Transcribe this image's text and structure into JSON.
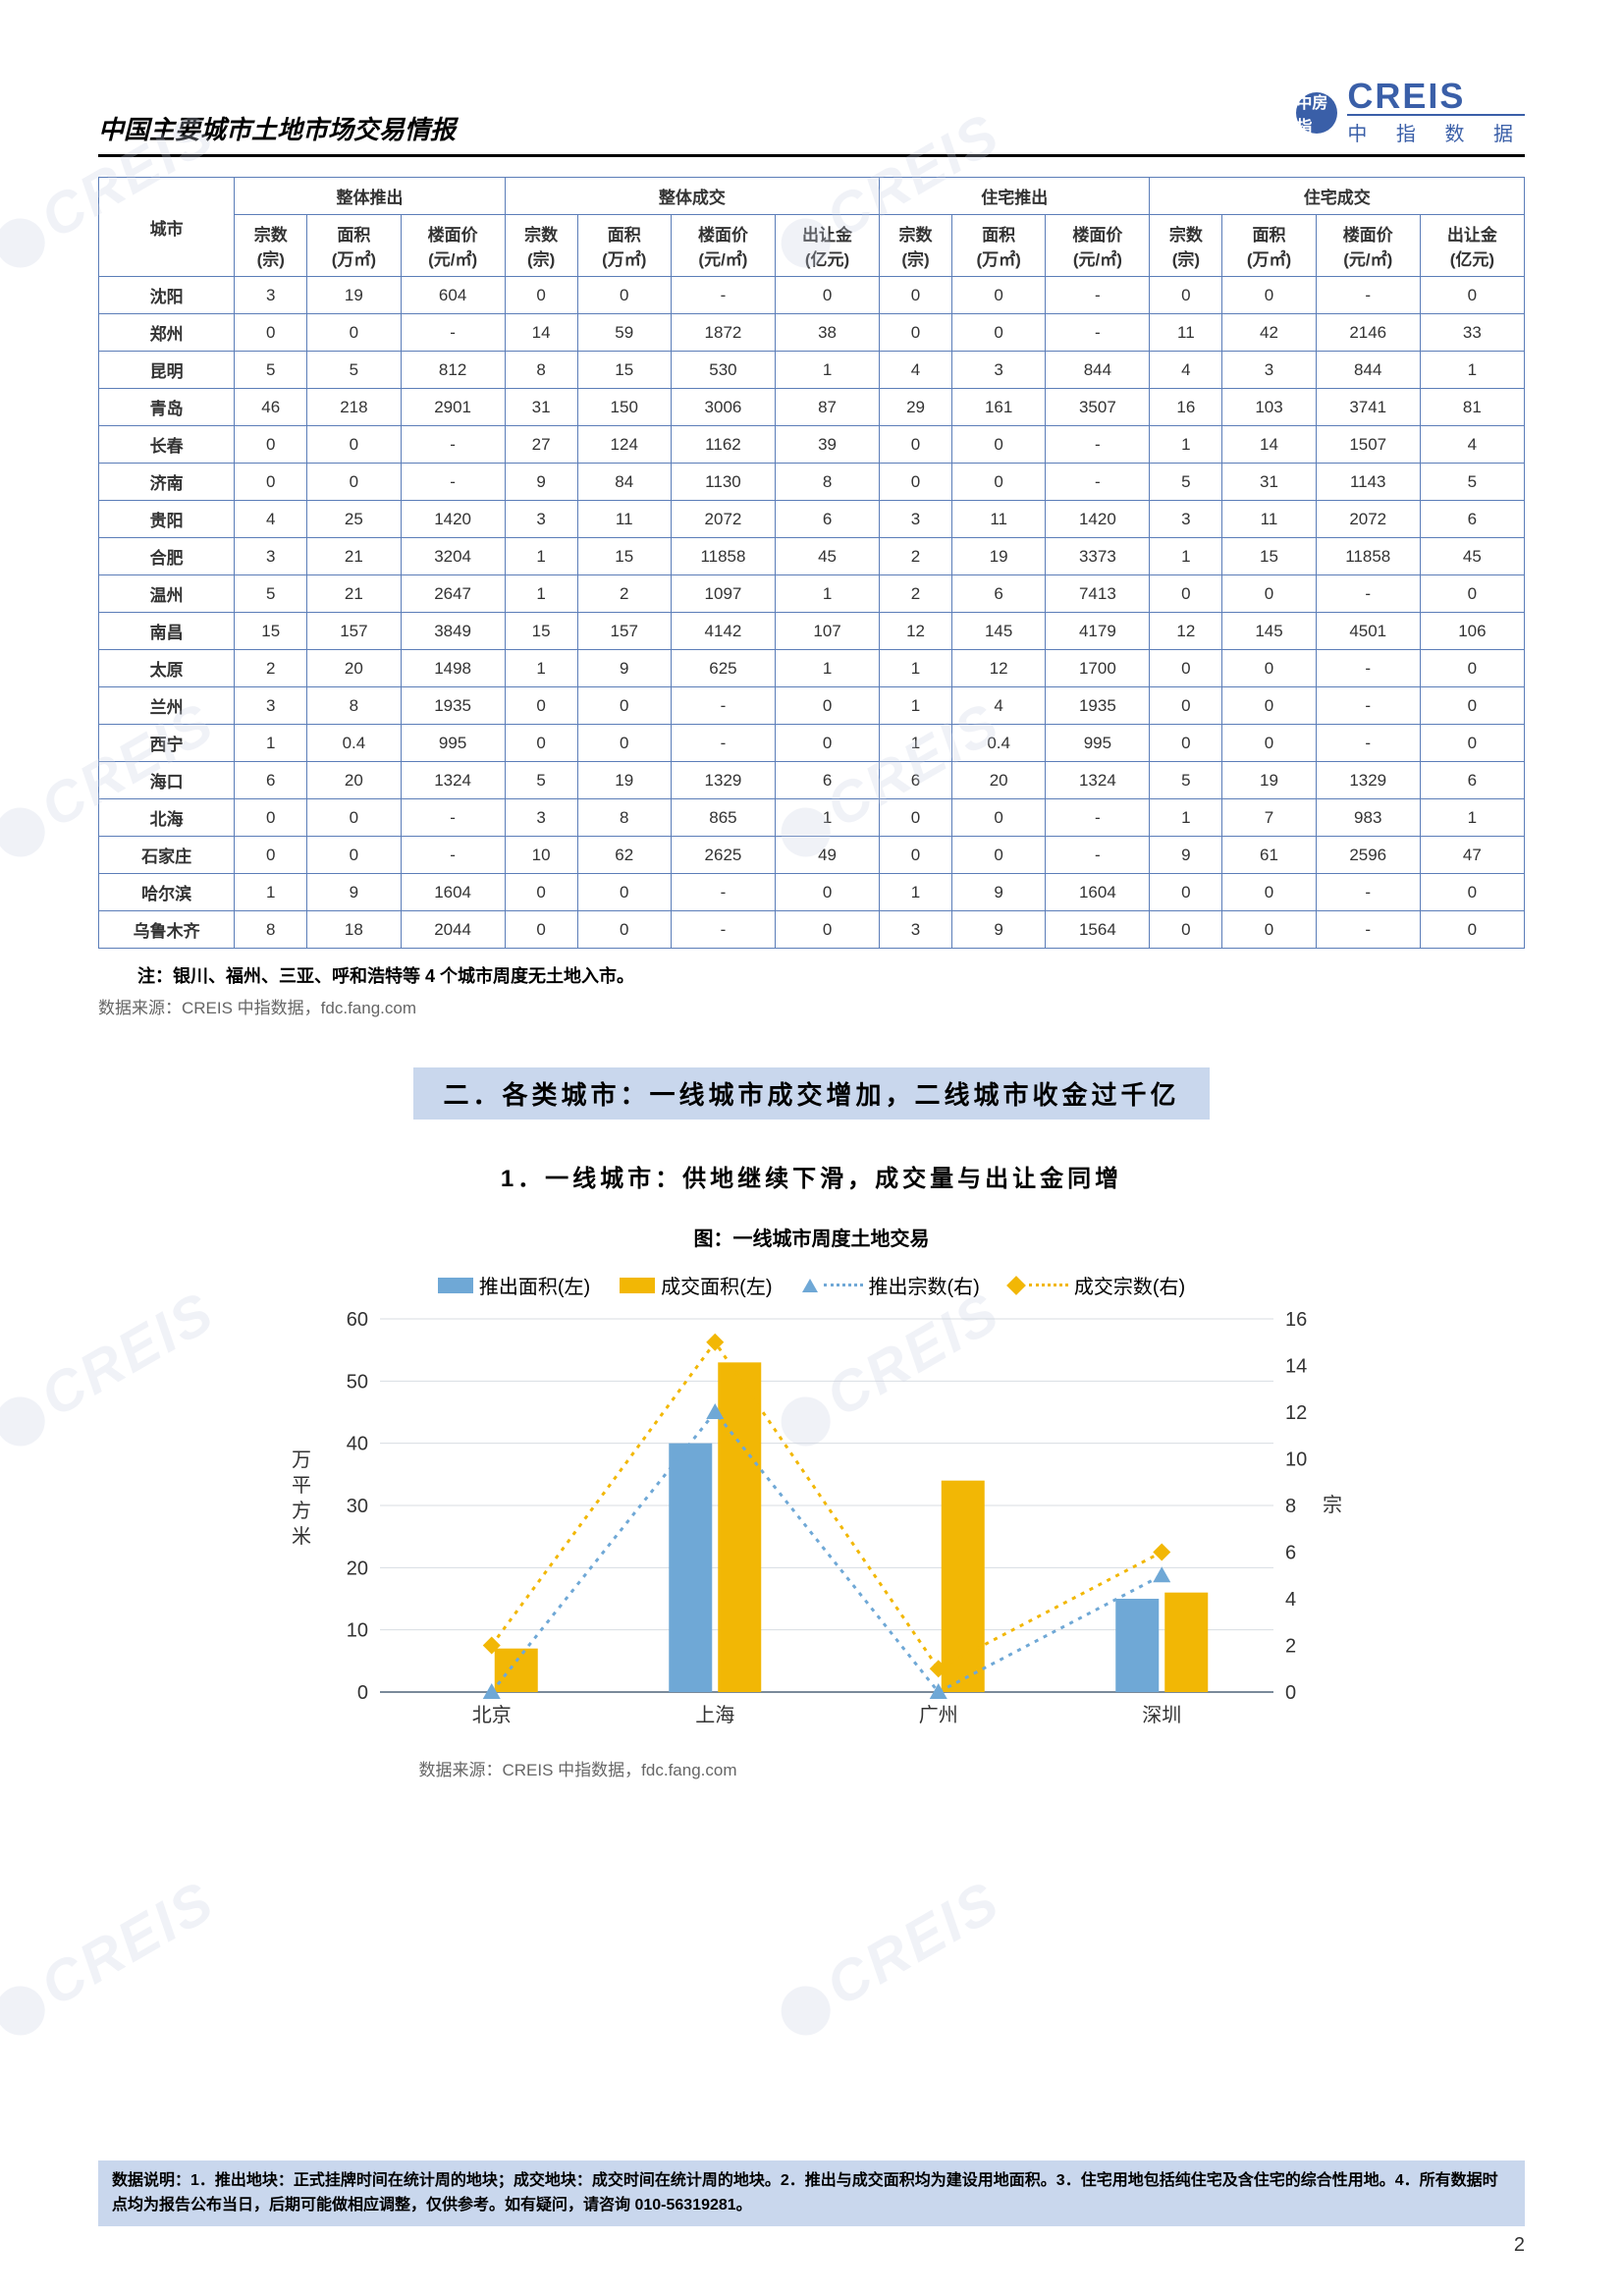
{
  "header": {
    "title": "中国主要城市土地市场交易情报",
    "logo_en": "CREIS",
    "logo_cn": "中 指 数 据",
    "logo_badge": "中房指"
  },
  "table": {
    "group_headers": [
      "整体推出",
      "整体成交",
      "住宅推出",
      "住宅成交"
    ],
    "city_header": "城市",
    "sub_headers_g1": [
      "宗数\n(宗)",
      "面积\n(万㎡)",
      "楼面价\n(元/㎡)"
    ],
    "sub_headers_g2": [
      "宗数\n(宗)",
      "面积\n(万㎡)",
      "楼面价\n(元/㎡)",
      "出让金\n(亿元)"
    ],
    "sub_headers_g3": [
      "宗数\n(宗)",
      "面积\n(万㎡)",
      "楼面价\n(元/㎡)"
    ],
    "sub_headers_g4": [
      "宗数\n(宗)",
      "面积\n(万㎡)",
      "楼面价\n(元/㎡)",
      "出让金\n(亿元)"
    ],
    "rows": [
      {
        "city": "沈阳",
        "v": [
          "3",
          "19",
          "604",
          "0",
          "0",
          "-",
          "0",
          "0",
          "0",
          "-",
          "0",
          "0",
          "-",
          "0"
        ]
      },
      {
        "city": "郑州",
        "v": [
          "0",
          "0",
          "-",
          "14",
          "59",
          "1872",
          "38",
          "0",
          "0",
          "-",
          "11",
          "42",
          "2146",
          "33"
        ]
      },
      {
        "city": "昆明",
        "v": [
          "5",
          "5",
          "812",
          "8",
          "15",
          "530",
          "1",
          "4",
          "3",
          "844",
          "4",
          "3",
          "844",
          "1"
        ]
      },
      {
        "city": "青岛",
        "v": [
          "46",
          "218",
          "2901",
          "31",
          "150",
          "3006",
          "87",
          "29",
          "161",
          "3507",
          "16",
          "103",
          "3741",
          "81"
        ]
      },
      {
        "city": "长春",
        "v": [
          "0",
          "0",
          "-",
          "27",
          "124",
          "1162",
          "39",
          "0",
          "0",
          "-",
          "1",
          "14",
          "1507",
          "4"
        ]
      },
      {
        "city": "济南",
        "v": [
          "0",
          "0",
          "-",
          "9",
          "84",
          "1130",
          "8",
          "0",
          "0",
          "-",
          "5",
          "31",
          "1143",
          "5"
        ]
      },
      {
        "city": "贵阳",
        "v": [
          "4",
          "25",
          "1420",
          "3",
          "11",
          "2072",
          "6",
          "3",
          "11",
          "1420",
          "3",
          "11",
          "2072",
          "6"
        ]
      },
      {
        "city": "合肥",
        "v": [
          "3",
          "21",
          "3204",
          "1",
          "15",
          "11858",
          "45",
          "2",
          "19",
          "3373",
          "1",
          "15",
          "11858",
          "45"
        ]
      },
      {
        "city": "温州",
        "v": [
          "5",
          "21",
          "2647",
          "1",
          "2",
          "1097",
          "1",
          "2",
          "6",
          "7413",
          "0",
          "0",
          "-",
          "0"
        ]
      },
      {
        "city": "南昌",
        "v": [
          "15",
          "157",
          "3849",
          "15",
          "157",
          "4142",
          "107",
          "12",
          "145",
          "4179",
          "12",
          "145",
          "4501",
          "106"
        ]
      },
      {
        "city": "太原",
        "v": [
          "2",
          "20",
          "1498",
          "1",
          "9",
          "625",
          "1",
          "1",
          "12",
          "1700",
          "0",
          "0",
          "-",
          "0"
        ]
      },
      {
        "city": "兰州",
        "v": [
          "3",
          "8",
          "1935",
          "0",
          "0",
          "-",
          "0",
          "1",
          "4",
          "1935",
          "0",
          "0",
          "-",
          "0"
        ]
      },
      {
        "city": "西宁",
        "v": [
          "1",
          "0.4",
          "995",
          "0",
          "0",
          "-",
          "0",
          "1",
          "0.4",
          "995",
          "0",
          "0",
          "-",
          "0"
        ]
      },
      {
        "city": "海口",
        "v": [
          "6",
          "20",
          "1324",
          "5",
          "19",
          "1329",
          "6",
          "6",
          "20",
          "1324",
          "5",
          "19",
          "1329",
          "6"
        ]
      },
      {
        "city": "北海",
        "v": [
          "0",
          "0",
          "-",
          "3",
          "8",
          "865",
          "1",
          "0",
          "0",
          "-",
          "1",
          "7",
          "983",
          "1"
        ]
      },
      {
        "city": "石家庄",
        "v": [
          "0",
          "0",
          "-",
          "10",
          "62",
          "2625",
          "49",
          "0",
          "0",
          "-",
          "9",
          "61",
          "2596",
          "47"
        ]
      },
      {
        "city": "哈尔滨",
        "v": [
          "1",
          "9",
          "1604",
          "0",
          "0",
          "-",
          "0",
          "1",
          "9",
          "1604",
          "0",
          "0",
          "-",
          "0"
        ]
      },
      {
        "city": "乌鲁木齐",
        "v": [
          "8",
          "18",
          "2044",
          "0",
          "0",
          "-",
          "0",
          "3",
          "9",
          "1564",
          "0",
          "0",
          "-",
          "0"
        ]
      }
    ]
  },
  "note": "注：银川、福州、三亚、呼和浩特等 4 个城市周度无土地入市。",
  "source": "数据来源：CREIS 中指数据，fdc.fang.com",
  "section_title": "二．各类城市：一线城市成交增加，二线城市收金过千亿",
  "sub_title": "1．一线城市：供地继续下滑，成交量与出让金同增",
  "chart": {
    "title": "图：一线城市周度土地交易",
    "legend": {
      "bar1": "推出面积(左)",
      "bar2": "成交面积(左)",
      "line1": "推出宗数(右)",
      "line2": "成交宗数(右)"
    },
    "categories": [
      "北京",
      "上海",
      "广州",
      "深圳"
    ],
    "push_area": [
      0,
      40,
      0,
      15
    ],
    "deal_area": [
      7,
      53,
      34,
      16
    ],
    "push_count": [
      0,
      12,
      0,
      5
    ],
    "deal_count": [
      2,
      15,
      1,
      6
    ],
    "colors": {
      "bar1": "#6fa8d6",
      "bar2": "#f2b705",
      "line1": "#6fa8d6",
      "line2": "#f2b705",
      "axis": "#7a8a9a",
      "grid": "#d8dde2",
      "text": "#333333"
    },
    "y_left": {
      "label": "万平方米",
      "min": 0,
      "max": 60,
      "step": 10
    },
    "y_right": {
      "label": "宗",
      "min": 0,
      "max": 16,
      "step": 2
    },
    "fontsize": 20
  },
  "chart_source": "数据来源：CREIS 中指数据，fdc.fang.com",
  "footer": {
    "text": "数据说明：1．推出地块：正式挂牌时间在统计周的地块；成交地块：成交时间在统计周的地块。2．推出与成交面积均为建设用地面积。3．住宅用地包括纯住宅及含住宅的综合性用地。4．所有数据时点均为报告公布当日，后期可能做相应调整，仅供参考。如有疑问，请咨询 010-56319281。",
    "page": "2"
  },
  "watermark": "CREIS"
}
